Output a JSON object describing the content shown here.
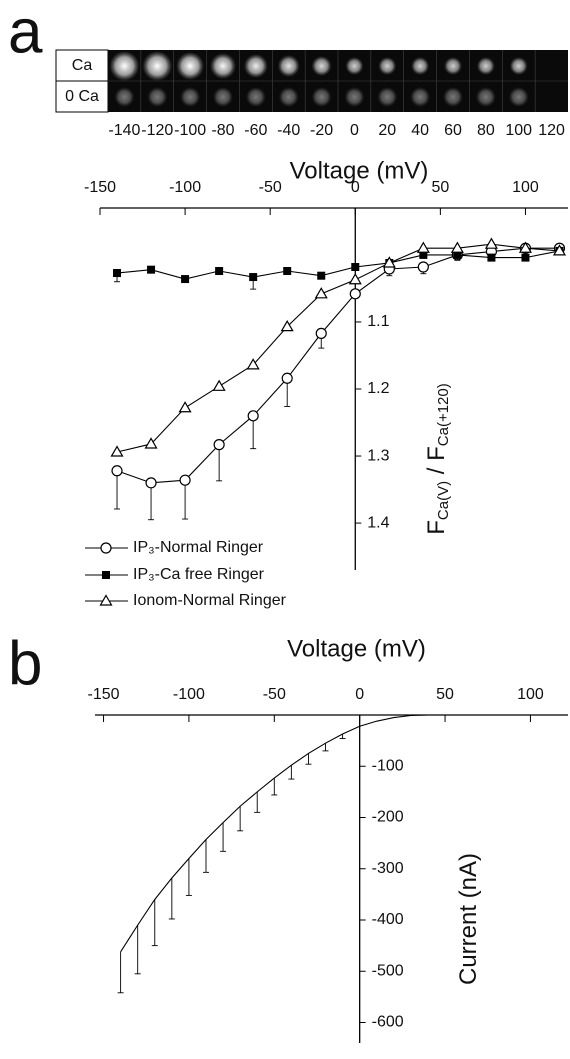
{
  "panel_labels": [
    "a",
    "b"
  ],
  "image_strip": {
    "rows": [
      "Ca",
      "0 Ca"
    ],
    "columns": [
      -140,
      -120,
      -100,
      -80,
      -60,
      -40,
      -20,
      0,
      20,
      40,
      60,
      80,
      100,
      120
    ]
  },
  "chart_data": [
    {
      "type": "line",
      "x_label": "Voltage (mV)",
      "y_label": [
        "F",
        "Ca(V)",
        " / F",
        "Ca(+120)"
      ],
      "xlim": [
        -150,
        125
      ],
      "xticks": [
        -150,
        -100,
        -50,
        0,
        50,
        100
      ],
      "ylim": [
        0.93,
        1.47
      ],
      "yticks": [
        1.1,
        1.2,
        1.3,
        1.4
      ],
      "y_reversed": true,
      "x": [
        -140,
        -120,
        -100,
        -80,
        -60,
        -40,
        -20,
        0,
        20,
        40,
        60,
        80,
        100,
        120
      ],
      "series": [
        {
          "name": "IP₃-Normal Ringer",
          "color": "#000000",
          "marker": "circle",
          "values": [
            1.322,
            1.34,
            1.336,
            1.283,
            1.24,
            1.184,
            1.117,
            1.058,
            1.021,
            1.018,
            1.0,
            0.995,
            0.99,
            0.99
          ],
          "errors": [
            0.057,
            0.055,
            0.058,
            0.054,
            0.049,
            0.042,
            0.022,
            null,
            0.01,
            0.01,
            null,
            null,
            null,
            null
          ]
        },
        {
          "name": "IP₃-Ca free Ringer",
          "color": "#000000",
          "marker": "square",
          "values": [
            1.027,
            1.022,
            1.036,
            1.024,
            1.033,
            1.024,
            1.031,
            1.018,
            1.012,
            1.0,
            1.0,
            1.004,
            1.004,
            0.994
          ],
          "errors": [
            0.013,
            null,
            null,
            null,
            0.018,
            null,
            null,
            null,
            null,
            null,
            0.008,
            null,
            null,
            null
          ]
        },
        {
          "name": "Ionom-Normal Ringer",
          "color": "#000000",
          "marker": "triangle",
          "values": [
            1.294,
            1.282,
            1.228,
            1.196,
            1.164,
            1.107,
            1.058,
            1.037,
            1.012,
            0.99,
            0.99,
            0.984,
            0.99,
            0.994
          ]
        }
      ]
    },
    {
      "type": "line",
      "x_label": "Voltage (mV)",
      "y_label": [
        "Current (nA)"
      ],
      "xlim": [
        -155,
        122
      ],
      "xticks": [
        -150,
        -100,
        -50,
        0,
        50,
        100
      ],
      "ylim": [
        -640,
        0
      ],
      "yticks": [
        -100,
        -200,
        -300,
        -400,
        -500,
        -600
      ],
      "x": [
        -140,
        -130,
        -120,
        -110,
        -100,
        -90,
        -80,
        -70,
        -60,
        -50,
        -40,
        -30,
        -20,
        -10,
        0,
        10,
        20,
        30,
        40
      ],
      "series": [
        {
          "color": "#000000",
          "values": [
            -462,
            -410,
            -360,
            -318,
            -280,
            -243,
            -210,
            -178,
            -150,
            -123,
            -98,
            -75,
            -55,
            -37,
            -22,
            -12,
            -5,
            -1,
            0
          ],
          "errors": [
            80,
            95,
            90,
            80,
            72,
            64,
            56,
            48,
            40,
            33,
            27,
            21,
            15,
            9,
            null,
            null,
            null,
            null,
            null
          ]
        }
      ]
    }
  ]
}
